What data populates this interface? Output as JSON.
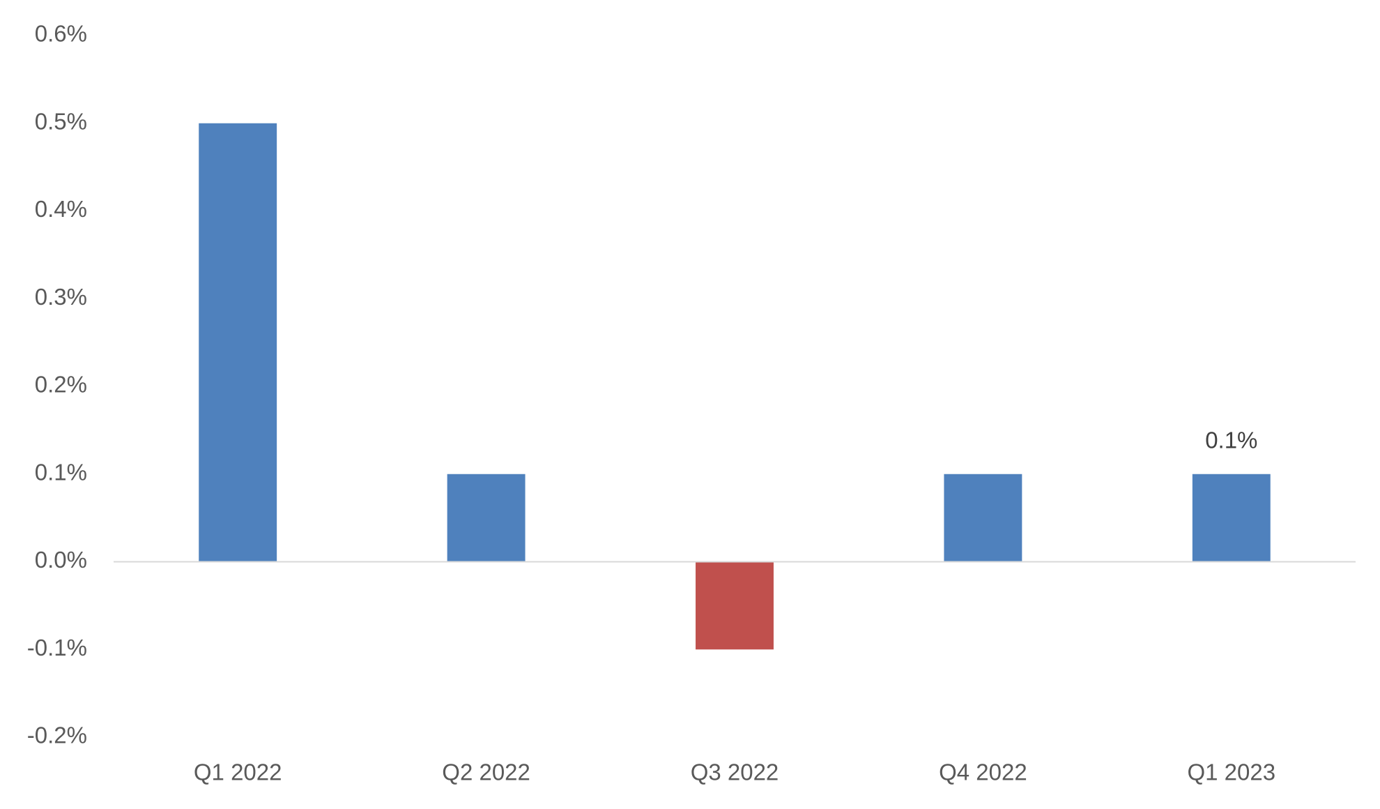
{
  "chart_data": {
    "type": "bar",
    "categories": [
      "Q1 2022",
      "Q2 2022",
      "Q3 2022",
      "Q4 2022",
      "Q1 2023"
    ],
    "values": [
      0.5,
      0.1,
      -0.1,
      0.1,
      0.1
    ],
    "value_labels": [
      null,
      null,
      null,
      null,
      "0.1%"
    ],
    "colors": [
      "#4f81bd",
      "#4f81bd",
      "#c0504d",
      "#4f81bd",
      "#4f81bd"
    ],
    "ylim": [
      -0.2,
      0.6
    ],
    "yticks": [
      {
        "value": -0.2,
        "label": "-0.2%"
      },
      {
        "value": -0.1,
        "label": "-0.1%"
      },
      {
        "value": 0,
        "label": "0.0%"
      },
      {
        "value": 0.1,
        "label": "0.1%"
      },
      {
        "value": 0.2,
        "label": "0.2%"
      },
      {
        "value": 0.3,
        "label": "0.3%"
      },
      {
        "value": 0.4,
        "label": "0.4%"
      },
      {
        "value": 0.5,
        "label": "0.5%"
      },
      {
        "value": 0.6,
        "label": "0.6%"
      }
    ],
    "grid": false
  }
}
